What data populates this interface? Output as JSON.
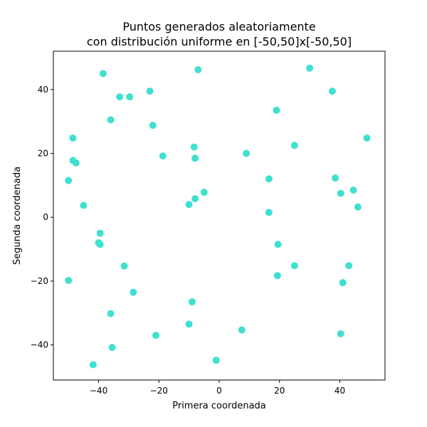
{
  "chart_data": {
    "type": "scatter",
    "title": [
      "Puntos generados aleatoriamente",
      "con distribución uniforme en [-50,50]x[-50,50]"
    ],
    "xlabel": "Primera coordenada",
    "ylabel": "Segunda coordenada",
    "xlim": [
      -55,
      55
    ],
    "ylim": [
      -51,
      52
    ],
    "xticks": [
      -40,
      -20,
      0,
      20,
      40
    ],
    "yticks": [
      -40,
      -20,
      0,
      20,
      40
    ],
    "xtick_labels": [
      "−40",
      "−20",
      "0",
      "20",
      "40"
    ],
    "ytick_labels": [
      "−40",
      "−20",
      "0",
      "20",
      "40"
    ],
    "grid": false,
    "marker_color": "#40e0d0",
    "points": [
      [
        -38.5,
        45.0
      ],
      [
        -7.0,
        46.2
      ],
      [
        30.0,
        46.7
      ],
      [
        37.5,
        39.5
      ],
      [
        -33.0,
        37.7
      ],
      [
        -29.7,
        37.7
      ],
      [
        -23.0,
        39.5
      ],
      [
        19.0,
        33.5
      ],
      [
        -36.0,
        30.5
      ],
      [
        -22.0,
        28.8
      ],
      [
        -48.5,
        24.8
      ],
      [
        49.0,
        24.8
      ],
      [
        25.0,
        22.5
      ],
      [
        -8.3,
        22.0
      ],
      [
        -18.7,
        19.2
      ],
      [
        9.0,
        20.0
      ],
      [
        -48.5,
        17.8
      ],
      [
        -47.5,
        17.0
      ],
      [
        -8.0,
        18.5
      ],
      [
        -50.0,
        11.5
      ],
      [
        16.5,
        12.0
      ],
      [
        38.5,
        12.3
      ],
      [
        44.5,
        8.5
      ],
      [
        40.3,
        7.5
      ],
      [
        -5.0,
        7.8
      ],
      [
        -8.0,
        5.8
      ],
      [
        -10.0,
        4.0
      ],
      [
        -45.0,
        3.7
      ],
      [
        46.0,
        3.2
      ],
      [
        16.5,
        1.5
      ],
      [
        -39.5,
        -5.0
      ],
      [
        -40.0,
        -8.0
      ],
      [
        -39.5,
        -8.5
      ],
      [
        19.5,
        -8.5
      ],
      [
        -31.5,
        -15.3
      ],
      [
        25.0,
        -15.2
      ],
      [
        43.0,
        -15.2
      ],
      [
        19.3,
        -18.3
      ],
      [
        -50.0,
        -19.8
      ],
      [
        41.0,
        -20.5
      ],
      [
        -28.5,
        -23.5
      ],
      [
        -9.0,
        -26.5
      ],
      [
        -36.0,
        -30.2
      ],
      [
        -10.0,
        -33.5
      ],
      [
        -21.0,
        -37.0
      ],
      [
        7.5,
        -35.3
      ],
      [
        40.3,
        -36.5
      ],
      [
        -35.5,
        -40.8
      ],
      [
        -41.8,
        -46.2
      ],
      [
        -1.0,
        -44.8
      ]
    ]
  }
}
